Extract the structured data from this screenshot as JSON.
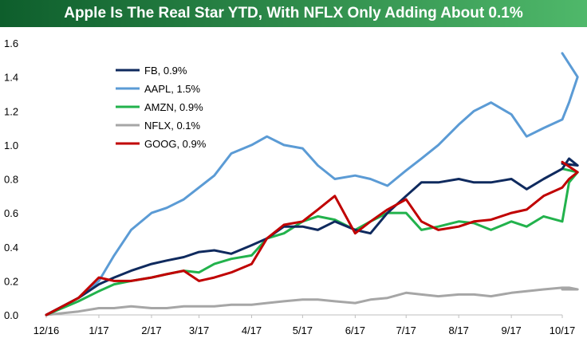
{
  "title": "Apple Is The Real Star YTD, With NFLX Only Adding About 0.1%",
  "colors": {
    "title_bar_start": "#0e5e2c",
    "title_bar_end": "#4fb86a",
    "FB": "#0f2a5e",
    "AAPL": "#5b9bd5",
    "AMZN": "#22b24c",
    "NFLX": "#a6a6a6",
    "GOOG": "#c00000"
  },
  "chart_data": {
    "type": "line",
    "title": "Apple Is The Real Star YTD, With NFLX Only Adding About 0.1%",
    "xlabel": "",
    "ylabel": "",
    "x_ticks": [
      "12/16",
      "1/17",
      "2/17",
      "3/17",
      "4/17",
      "5/17",
      "6/17",
      "7/17",
      "8/17",
      "9/17",
      "10/17"
    ],
    "y_ticks": [
      "0.0",
      "0.2",
      "0.4",
      "0.6",
      "0.8",
      "1.0",
      "1.2",
      "1.4",
      "1.6"
    ],
    "ylim": [
      0,
      1.6
    ],
    "x_range": [
      "12/16",
      "10/17"
    ],
    "grid": false,
    "legend_position": "top-left",
    "series": [
      {
        "name": "FB, 0.9%",
        "key": "FB",
        "x": [
          "12/16",
          "12/20/16",
          "1/1/17",
          "1/10/17",
          "1/20/17",
          "2/1/17",
          "2/10/17",
          "2/20/17",
          "3/1/17",
          "3/10/17",
          "3/20/17",
          "4/1/17",
          "4/10/17",
          "4/20/17",
          "5/1/17",
          "5/10/17",
          "5/20/17",
          "6/1/17",
          "6/10/17",
          "6/20/17",
          "7/1/17",
          "7/10/17",
          "7/20/17",
          "8/1/17",
          "8/10/17",
          "8/20/17",
          "9/1/17",
          "9/10/17",
          "9/20/17",
          "10/1/17",
          "10/5/17",
          "10/10/17",
          "10/17"
        ],
        "values": [
          0.0,
          0.1,
          0.18,
          0.22,
          0.26,
          0.3,
          0.32,
          0.34,
          0.37,
          0.38,
          0.36,
          0.41,
          0.45,
          0.52,
          0.52,
          0.5,
          0.55,
          0.5,
          0.48,
          0.6,
          0.7,
          0.78,
          0.78,
          0.8,
          0.78,
          0.78,
          0.8,
          0.74,
          0.8,
          0.86,
          0.92,
          0.88,
          0.89
        ]
      },
      {
        "name": "AAPL, 1.5%",
        "key": "AAPL",
        "x": [
          "12/16",
          "12/20/16",
          "1/1/17",
          "1/10/17",
          "1/20/17",
          "2/1/17",
          "2/10/17",
          "2/20/17",
          "3/1/17",
          "3/10/17",
          "3/20/17",
          "4/1/17",
          "4/10/17",
          "4/20/17",
          "5/1/17",
          "5/10/17",
          "5/20/17",
          "6/1/17",
          "6/10/17",
          "6/20/17",
          "7/1/17",
          "7/10/17",
          "7/20/17",
          "8/1/17",
          "8/10/17",
          "8/20/17",
          "9/1/17",
          "9/10/17",
          "9/20/17",
          "10/1/17",
          "10/5/17",
          "10/10/17",
          "10/17"
        ],
        "values": [
          0.0,
          0.1,
          0.2,
          0.35,
          0.5,
          0.6,
          0.63,
          0.68,
          0.75,
          0.82,
          0.95,
          1.0,
          1.05,
          1.0,
          0.98,
          0.88,
          0.8,
          0.82,
          0.8,
          0.76,
          0.85,
          0.92,
          1.0,
          1.12,
          1.2,
          1.25,
          1.18,
          1.05,
          1.1,
          1.15,
          1.25,
          1.4,
          1.54
        ]
      },
      {
        "name": "AMZN, 0.9%",
        "key": "AMZN",
        "x": [
          "12/16",
          "12/20/16",
          "1/1/17",
          "1/10/17",
          "1/20/17",
          "2/1/17",
          "2/10/17",
          "2/20/17",
          "3/1/17",
          "3/10/17",
          "3/20/17",
          "4/1/17",
          "4/10/17",
          "4/20/17",
          "5/1/17",
          "5/10/17",
          "5/20/17",
          "6/1/17",
          "6/10/17",
          "6/20/17",
          "7/1/17",
          "7/10/17",
          "7/20/17",
          "8/1/17",
          "8/10/17",
          "8/20/17",
          "9/1/17",
          "9/10/17",
          "9/20/17",
          "10/1/17",
          "10/5/17",
          "10/10/17",
          "10/17"
        ],
        "values": [
          0.0,
          0.08,
          0.14,
          0.18,
          0.2,
          0.22,
          0.24,
          0.26,
          0.25,
          0.3,
          0.33,
          0.35,
          0.45,
          0.48,
          0.55,
          0.58,
          0.56,
          0.5,
          0.55,
          0.6,
          0.6,
          0.5,
          0.52,
          0.55,
          0.54,
          0.5,
          0.55,
          0.52,
          0.58,
          0.55,
          0.78,
          0.84,
          0.86
        ]
      },
      {
        "name": "NFLX, 0.1%",
        "key": "NFLX",
        "x": [
          "12/16",
          "12/20/16",
          "1/1/17",
          "1/10/17",
          "1/20/17",
          "2/1/17",
          "2/10/17",
          "2/20/17",
          "3/1/17",
          "3/10/17",
          "3/20/17",
          "4/1/17",
          "4/10/17",
          "4/20/17",
          "5/1/17",
          "5/10/17",
          "5/20/17",
          "6/1/17",
          "6/10/17",
          "6/20/17",
          "7/1/17",
          "7/10/17",
          "7/20/17",
          "8/1/17",
          "8/10/17",
          "8/20/17",
          "9/1/17",
          "9/10/17",
          "9/20/17",
          "10/1/17",
          "10/5/17",
          "10/10/17",
          "10/17"
        ],
        "values": [
          0.0,
          0.02,
          0.04,
          0.04,
          0.05,
          0.04,
          0.04,
          0.05,
          0.05,
          0.05,
          0.06,
          0.06,
          0.07,
          0.08,
          0.09,
          0.09,
          0.08,
          0.07,
          0.09,
          0.1,
          0.13,
          0.12,
          0.11,
          0.12,
          0.12,
          0.11,
          0.13,
          0.14,
          0.15,
          0.16,
          0.16,
          0.15,
          0.15
        ]
      },
      {
        "name": "GOOG, 0.9%",
        "key": "GOOG",
        "x": [
          "12/16",
          "12/20/16",
          "1/1/17",
          "1/10/17",
          "1/20/17",
          "2/1/17",
          "2/10/17",
          "2/20/17",
          "3/1/17",
          "3/10/17",
          "3/20/17",
          "4/1/17",
          "4/10/17",
          "4/20/17",
          "5/1/17",
          "5/10/17",
          "5/20/17",
          "6/1/17",
          "6/10/17",
          "6/20/17",
          "7/1/17",
          "7/10/17",
          "7/20/17",
          "8/1/17",
          "8/10/17",
          "8/20/17",
          "9/1/17",
          "9/10/17",
          "9/20/17",
          "10/1/17",
          "10/5/17",
          "10/10/17",
          "10/17"
        ],
        "values": [
          0.0,
          0.1,
          0.22,
          0.2,
          0.2,
          0.22,
          0.24,
          0.26,
          0.2,
          0.22,
          0.25,
          0.3,
          0.45,
          0.53,
          0.55,
          0.62,
          0.7,
          0.48,
          0.55,
          0.62,
          0.68,
          0.55,
          0.5,
          0.52,
          0.55,
          0.56,
          0.6,
          0.62,
          0.7,
          0.75,
          0.8,
          0.84,
          0.9
        ]
      }
    ]
  }
}
